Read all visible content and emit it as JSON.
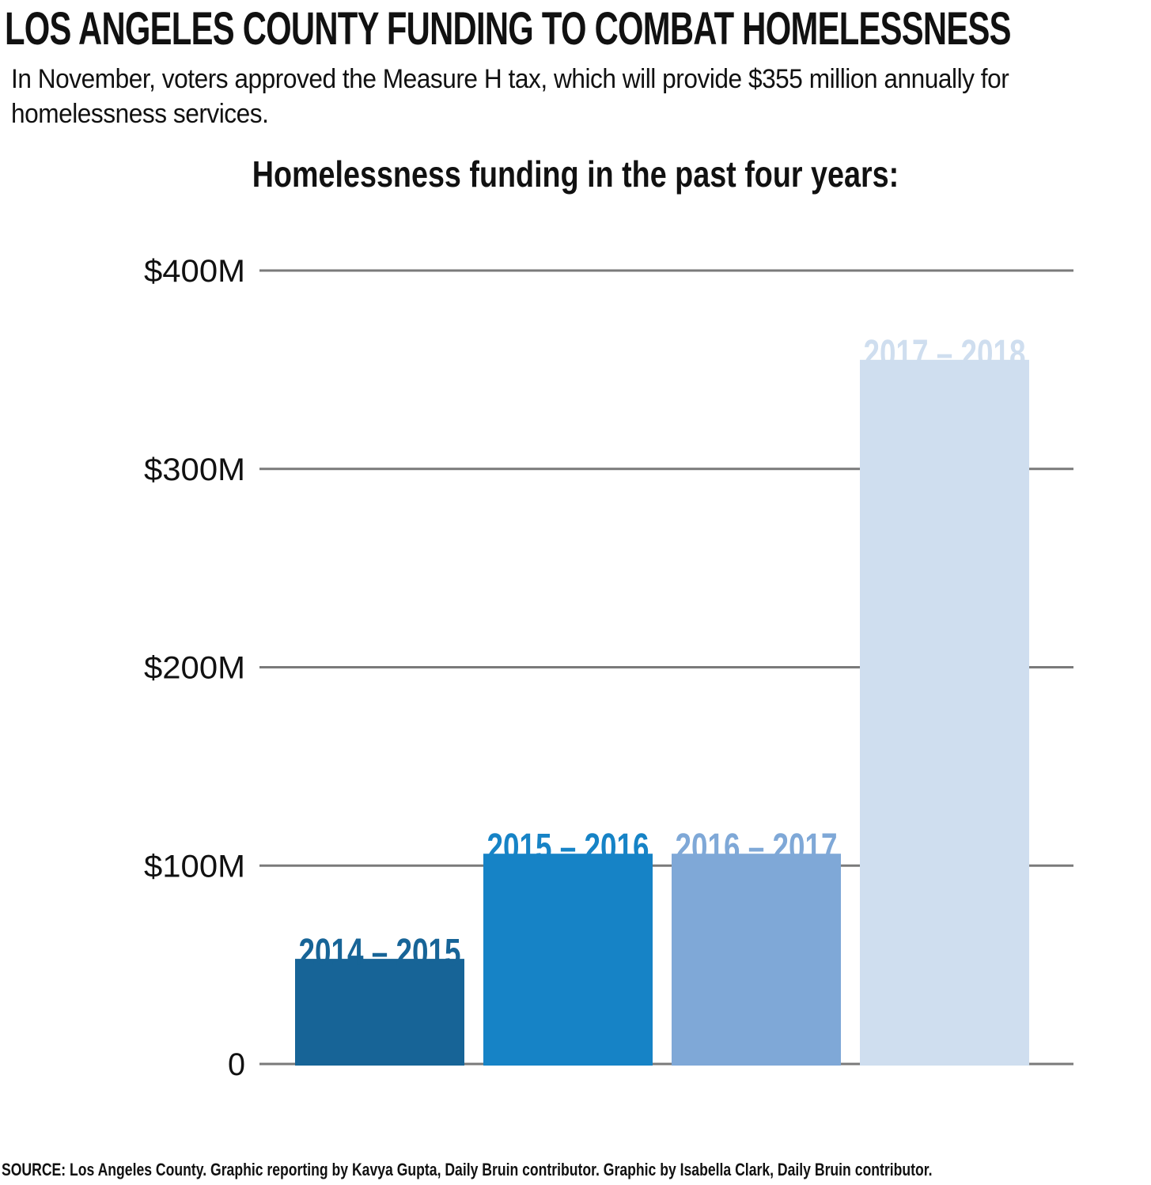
{
  "headline": "LOS ANGELES COUNTY FUNDING TO COMBAT HOMELESSNESS",
  "subtitle": "In November, voters approved the Measure H tax, which will provide $355 million annually for homelessness services.",
  "footer": "SOURCE: Los Angeles County. Graphic reporting by Kavya Gupta, Daily Bruin contributor. Graphic by Isabella Clark, Daily Bruin contributor.",
  "chart_data": {
    "type": "bar",
    "title": "Homelessness funding in the past four years:",
    "xlabel": "",
    "ylabel": "",
    "ylim": [
      0,
      400
    ],
    "grid": true,
    "legend": "none",
    "y_ticks": [
      {
        "value": 0,
        "label": "0"
      },
      {
        "value": 100,
        "label": "$100M"
      },
      {
        "value": 200,
        "label": "$200M"
      },
      {
        "value": 300,
        "label": "$300M"
      },
      {
        "value": 400,
        "label": "$400M"
      }
    ],
    "categories": [
      "2014 – 2015",
      "2015 – 2016",
      "2016 – 2017",
      "2017 – 2018"
    ],
    "values": [
      53,
      106,
      106,
      355
    ],
    "unit": "million USD",
    "colors": [
      "#176497",
      "#1683c6",
      "#7fa8d7",
      "#cfdeef"
    ],
    "label_colors": [
      "#176497",
      "#1683c6",
      "#7fa8d7",
      "#cfdeef"
    ]
  }
}
